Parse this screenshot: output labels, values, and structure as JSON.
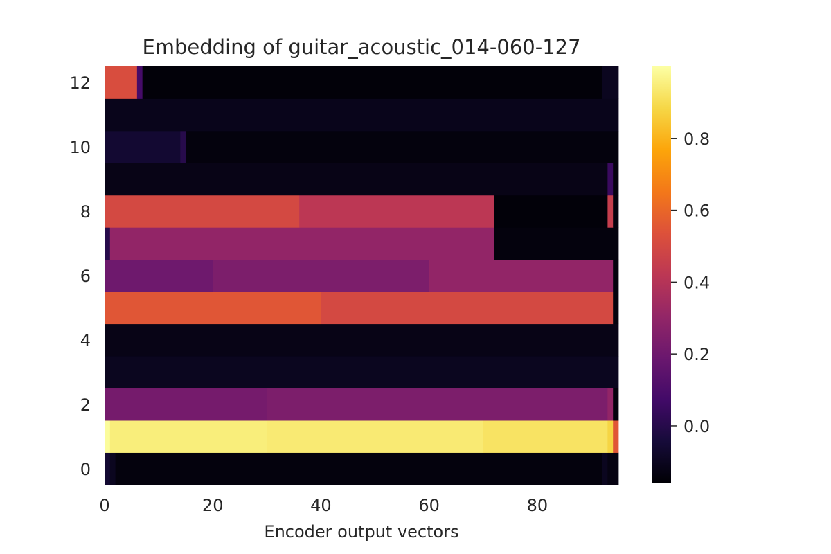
{
  "chart_data": {
    "type": "heatmap",
    "title": "Embedding of guitar_acoustic_014-060-127",
    "xlabel": "Encoder output vectors",
    "ylabel": "",
    "x_count": 95,
    "y_count": 13,
    "xlim": [
      0,
      95
    ],
    "ylim": [
      -0.5,
      12.5
    ],
    "x_ticks": [
      0,
      20,
      40,
      60,
      80
    ],
    "y_ticks": [
      0,
      2,
      4,
      6,
      8,
      10,
      12
    ],
    "colormap": "inferno",
    "colorbar": {
      "vmin": -0.16,
      "vmax": 1.0,
      "ticks": [
        0.0,
        0.2,
        0.4,
        0.6,
        0.8
      ],
      "tick_labels": [
        "0.0",
        "0.2",
        "0.4",
        "0.6",
        "0.8"
      ]
    },
    "grid": false,
    "rows": [
      {
        "dim": 0,
        "segments": [
          {
            "from": 0,
            "to": 1,
            "value": -0.06
          },
          {
            "from": 1,
            "to": 2,
            "value": -0.1
          },
          {
            "from": 2,
            "to": 92,
            "value": -0.14
          },
          {
            "from": 92,
            "to": 93,
            "value": -0.1
          },
          {
            "from": 93,
            "to": 95,
            "value": -0.13
          }
        ]
      },
      {
        "dim": 1,
        "segments": [
          {
            "from": 0,
            "to": 1,
            "value": 0.99
          },
          {
            "from": 1,
            "to": 30,
            "value": 0.95
          },
          {
            "from": 30,
            "to": 70,
            "value": 0.94
          },
          {
            "from": 70,
            "to": 93,
            "value": 0.92
          },
          {
            "from": 93,
            "to": 94,
            "value": 0.88
          },
          {
            "from": 94,
            "to": 95,
            "value": 0.55
          }
        ]
      },
      {
        "dim": 2,
        "segments": [
          {
            "from": 0,
            "to": 30,
            "value": 0.22
          },
          {
            "from": 30,
            "to": 93,
            "value": 0.24
          },
          {
            "from": 93,
            "to": 94,
            "value": 0.3
          },
          {
            "from": 94,
            "to": 95,
            "value": -0.14
          }
        ]
      },
      {
        "dim": 3,
        "segments": [
          {
            "from": 0,
            "to": 95,
            "value": -0.1
          }
        ]
      },
      {
        "dim": 4,
        "segments": [
          {
            "from": 0,
            "to": 95,
            "value": -0.12
          }
        ]
      },
      {
        "dim": 5,
        "segments": [
          {
            "from": 0,
            "to": 40,
            "value": 0.55
          },
          {
            "from": 40,
            "to": 94,
            "value": 0.5
          },
          {
            "from": 94,
            "to": 95,
            "value": -0.14
          }
        ]
      },
      {
        "dim": 6,
        "segments": [
          {
            "from": 0,
            "to": 20,
            "value": 0.2
          },
          {
            "from": 20,
            "to": 60,
            "value": 0.24
          },
          {
            "from": 60,
            "to": 94,
            "value": 0.3
          },
          {
            "from": 94,
            "to": 95,
            "value": -0.14
          }
        ]
      },
      {
        "dim": 7,
        "segments": [
          {
            "from": 0,
            "to": 1,
            "value": 0.0
          },
          {
            "from": 1,
            "to": 72,
            "value": 0.3
          },
          {
            "from": 72,
            "to": 95,
            "value": -0.14
          }
        ]
      },
      {
        "dim": 8,
        "segments": [
          {
            "from": 0,
            "to": 36,
            "value": 0.5
          },
          {
            "from": 36,
            "to": 72,
            "value": 0.42
          },
          {
            "from": 72,
            "to": 93,
            "value": -0.15
          },
          {
            "from": 93,
            "to": 94,
            "value": 0.45
          },
          {
            "from": 94,
            "to": 95,
            "value": -0.14
          }
        ]
      },
      {
        "dim": 9,
        "segments": [
          {
            "from": 0,
            "to": 93,
            "value": -0.12
          },
          {
            "from": 93,
            "to": 94,
            "value": 0.05
          },
          {
            "from": 94,
            "to": 95,
            "value": -0.14
          }
        ]
      },
      {
        "dim": 10,
        "segments": [
          {
            "from": 0,
            "to": 14,
            "value": -0.06
          },
          {
            "from": 14,
            "to": 15,
            "value": 0.0
          },
          {
            "from": 15,
            "to": 95,
            "value": -0.14
          }
        ]
      },
      {
        "dim": 11,
        "segments": [
          {
            "from": 0,
            "to": 95,
            "value": -0.11
          }
        ]
      },
      {
        "dim": 12,
        "segments": [
          {
            "from": 0,
            "to": 6,
            "value": 0.52
          },
          {
            "from": 6,
            "to": 7,
            "value": 0.08
          },
          {
            "from": 7,
            "to": 92,
            "value": -0.15
          },
          {
            "from": 92,
            "to": 95,
            "value": -0.1
          }
        ]
      }
    ]
  }
}
